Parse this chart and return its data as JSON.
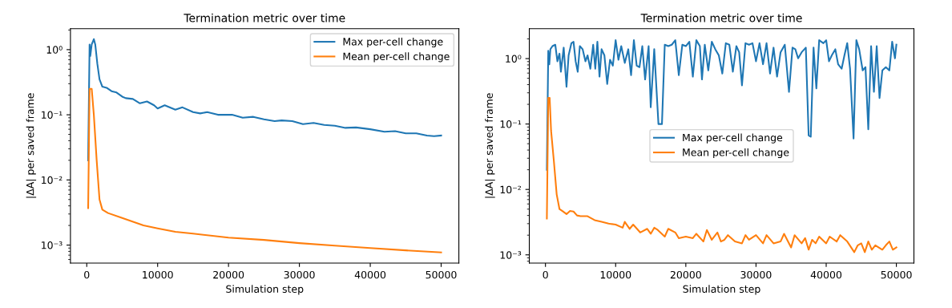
{
  "chart_data": [
    {
      "type": "line",
      "title": "Termination metric over time",
      "xlabel": "Simulation step",
      "ylabel": "|ΔA| per saved frame",
      "log": "y",
      "grid": false,
      "legend": "top right",
      "xlim": [
        -2300,
        52500
      ],
      "xticks": [
        0,
        10000,
        20000,
        30000,
        40000,
        50000
      ],
      "ylim": [
        0.00053,
        2.1
      ],
      "yticks": [
        {
          "value": 0.001,
          "label": "10⁻³"
        },
        {
          "value": 0.01,
          "label": "10⁻²"
        },
        {
          "value": 0.1,
          "label": "10⁻¹"
        },
        {
          "value": 1,
          "label": "10⁰"
        }
      ],
      "series": [
        {
          "name": "Max per-cell change",
          "color": "#1f77b4",
          "x": [
            200,
            400,
            500,
            700,
            1000,
            1200,
            1500,
            1800,
            2200,
            2800,
            3500,
            4200,
            5000,
            5500,
            6500,
            7500,
            8500,
            9500,
            10000,
            11000,
            12500,
            13500,
            15000,
            16000,
            17000,
            18500,
            19500,
            20500,
            22000,
            23500,
            25000,
            26500,
            27500,
            29000,
            30500,
            32000,
            33500,
            35000,
            36500,
            38000,
            40000,
            42000,
            43500,
            45000,
            46500,
            48000,
            49000,
            50000
          ],
          "values": [
            0.02,
            1.2,
            0.8,
            1.2,
            1.45,
            1.2,
            0.6,
            0.35,
            0.27,
            0.26,
            0.23,
            0.22,
            0.19,
            0.18,
            0.175,
            0.15,
            0.16,
            0.14,
            0.125,
            0.14,
            0.12,
            0.13,
            0.11,
            0.105,
            0.11,
            0.1,
            0.1,
            0.1,
            0.09,
            0.093,
            0.085,
            0.08,
            0.082,
            0.08,
            0.072,
            0.075,
            0.07,
            0.068,
            0.063,
            0.064,
            0.06,
            0.055,
            0.056,
            0.052,
            0.052,
            0.048,
            0.047,
            0.048
          ]
        },
        {
          "name": "Mean per-cell change",
          "color": "#ff7f0e",
          "x": [
            200,
            400,
            700,
            1000,
            1400,
            1800,
            2200,
            3000,
            5000,
            8000,
            10000,
            12500,
            15000,
            20000,
            25000,
            30000,
            35000,
            40000,
            45000,
            50000
          ],
          "values": [
            0.0037,
            0.25,
            0.25,
            0.1,
            0.02,
            0.005,
            0.0035,
            0.0031,
            0.0026,
            0.002,
            0.0018,
            0.0016,
            0.0015,
            0.0013,
            0.0012,
            0.00107,
            0.00098,
            0.0009,
            0.00083,
            0.00077
          ]
        }
      ]
    },
    {
      "type": "line",
      "title": "Termination metric over time",
      "xlabel": "Simulation step",
      "ylabel": "|ΔA| per saved frame",
      "log": "y",
      "grid": false,
      "legend": "center",
      "xlim": [
        -2300,
        52500
      ],
      "xticks": [
        0,
        10000,
        20000,
        30000,
        40000,
        50000
      ],
      "ylim": [
        0.00075,
        2.87
      ],
      "yticks": [
        {
          "value": 0.001,
          "label": "10⁻³"
        },
        {
          "value": 0.01,
          "label": "10⁻²"
        },
        {
          "value": 0.1,
          "label": "10⁻¹"
        },
        {
          "value": 1,
          "label": "10⁰"
        }
      ],
      "series": [
        {
          "name": "Max per-cell change",
          "color": "#1f77b4",
          "x": [
            200,
            400,
            550,
            700,
            1000,
            1400,
            1700,
            2000,
            2200,
            2600,
            3000,
            3300,
            3700,
            4000,
            4300,
            4600,
            4900,
            5300,
            5700,
            6000,
            6400,
            6800,
            7100,
            7400,
            7700,
            8000,
            8400,
            8800,
            9200,
            9600,
            10000,
            10400,
            10800,
            11300,
            11800,
            12200,
            12600,
            13000,
            13400,
            13800,
            14200,
            14700,
            15000,
            15500,
            16100,
            16600,
            17000,
            17500,
            18000,
            18500,
            19000,
            19500,
            20000,
            20500,
            21000,
            21500,
            22000,
            22300,
            22700,
            23200,
            23700,
            24200,
            24700,
            25200,
            25700,
            26200,
            26700,
            27200,
            27600,
            28000,
            28500,
            29000,
            29500,
            30000,
            30500,
            31000,
            31500,
            32000,
            32500,
            33000,
            33500,
            34100,
            34700,
            35200,
            35600,
            36000,
            36500,
            37100,
            37500,
            37800,
            38200,
            38600,
            39000,
            39600,
            40000,
            40400,
            40800,
            41300,
            41700,
            42200,
            42600,
            43000,
            43400,
            43900,
            44300,
            44700,
            45200,
            45600,
            46000,
            46400,
            46800,
            47200,
            47600,
            48000,
            48500,
            49000,
            49400,
            49800,
            50000
          ],
          "values": [
            0.02,
            1.32,
            0.82,
            1.39,
            1.55,
            1.63,
            0.91,
            1.19,
            0.63,
            1.47,
            0.37,
            1.12,
            1.72,
            1.81,
            0.91,
            0.63,
            1.55,
            1.39,
            0.91,
            1.12,
            0.7,
            1.63,
            0.7,
            1.81,
            0.53,
            1.39,
            1.12,
            0.41,
            0.96,
            0.78,
            1.91,
            0.96,
            1.55,
            0.86,
            1.39,
            0.56,
            1.91,
            0.78,
            0.74,
            1.55,
            0.48,
            1.55,
            0.18,
            1.39,
            0.1,
            0.1,
            1.63,
            1.55,
            1.63,
            1.91,
            0.56,
            1.63,
            1.55,
            1.81,
            0.53,
            1.91,
            1.55,
            0.48,
            1.63,
            0.66,
            1.81,
            1.39,
            1.12,
            0.59,
            1.72,
            1.63,
            0.63,
            1.55,
            1.25,
            0.39,
            1.72,
            1.63,
            1.72,
            0.91,
            1.72,
            0.82,
            1.72,
            0.59,
            1.47,
            0.53,
            1.25,
            1.63,
            0.31,
            1.47,
            1.39,
            1.01,
            1.25,
            1.47,
            0.067,
            0.064,
            1.47,
            0.35,
            1.91,
            1.72,
            1.91,
            0.91,
            1.12,
            1.39,
            0.82,
            0.7,
            1.12,
            1.72,
            0.7,
            0.06,
            1.91,
            1.39,
            0.66,
            0.74,
            0.083,
            1.55,
            0.31,
            1.55,
            0.25,
            0.66,
            0.74,
            0.66,
            1.81,
            1.01,
            1.63
          ]
        },
        {
          "name": "Mean per-cell change",
          "color": "#ff7f0e",
          "x": [
            200,
            400,
            600,
            800,
            1200,
            1600,
            2000,
            2500,
            3000,
            3500,
            4000,
            4500,
            5000,
            6000,
            7000,
            8000,
            9000,
            10000,
            11000,
            11300,
            12000,
            12500,
            13500,
            14500,
            15000,
            15500,
            16000,
            17000,
            17500,
            18500,
            19000,
            20000,
            21000,
            21500,
            22500,
            23000,
            23700,
            24500,
            25000,
            25500,
            26000,
            27000,
            28000,
            28500,
            29000,
            30000,
            31000,
            31500,
            32500,
            33500,
            34000,
            35000,
            35500,
            36500,
            37000,
            37500,
            38000,
            38500,
            39000,
            40000,
            40500,
            41500,
            42000,
            43000,
            44000,
            44500,
            45000,
            45500,
            46000,
            46500,
            47000,
            48000,
            48500,
            49000,
            49500,
            50000
          ],
          "values": [
            0.0036,
            0.25,
            0.25,
            0.079,
            0.027,
            0.0084,
            0.005,
            0.0046,
            0.0042,
            0.0047,
            0.0046,
            0.004,
            0.0039,
            0.0039,
            0.0034,
            0.0032,
            0.003,
            0.0029,
            0.0026,
            0.0032,
            0.0025,
            0.0029,
            0.0022,
            0.0025,
            0.0021,
            0.0026,
            0.0024,
            0.0019,
            0.0025,
            0.0022,
            0.0018,
            0.0019,
            0.0018,
            0.0021,
            0.0016,
            0.0024,
            0.0017,
            0.0022,
            0.0016,
            0.0017,
            0.002,
            0.0016,
            0.0015,
            0.002,
            0.0017,
            0.002,
            0.0015,
            0.002,
            0.0015,
            0.0016,
            0.0021,
            0.0013,
            0.002,
            0.0015,
            0.0018,
            0.0012,
            0.0017,
            0.0015,
            0.0019,
            0.0015,
            0.0019,
            0.0016,
            0.002,
            0.0016,
            0.0011,
            0.0014,
            0.0015,
            0.0011,
            0.0016,
            0.0012,
            0.0014,
            0.0012,
            0.0014,
            0.0016,
            0.0012,
            0.0013
          ]
        }
      ]
    }
  ]
}
